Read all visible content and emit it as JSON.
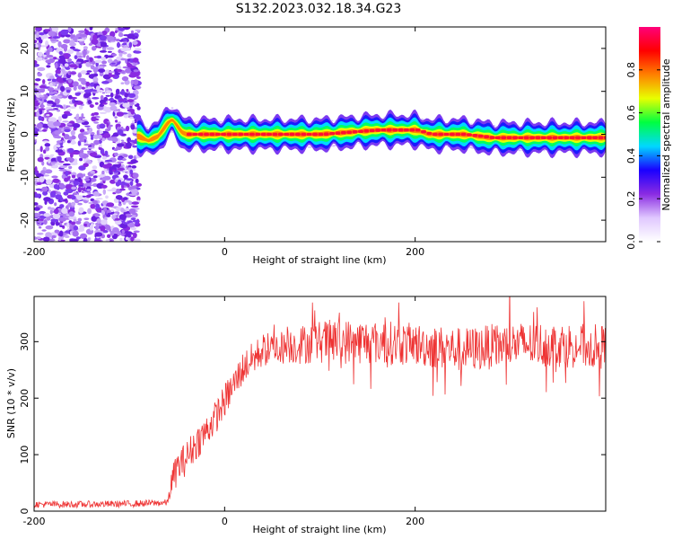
{
  "title": "S132.2023.032.18.34.G23",
  "chart_data": [
    {
      "type": "heatmap",
      "xlabel": "Height of straight line (km)",
      "ylabel": "Frequency (Hz)",
      "xlim": [
        -200,
        400
      ],
      "ylim": [
        -25,
        25
      ],
      "x_ticks": [
        -200,
        0,
        200
      ],
      "y_ticks": [
        20,
        10,
        0,
        -10,
        -20
      ],
      "colorbar": {
        "label": "Normalized spectral amplitude",
        "range": [
          0,
          1
        ],
        "ticks": [
          0.0,
          0.2,
          0.4,
          0.6,
          0.8
        ],
        "colors": [
          "#ffffff",
          "#e0c8ff",
          "#8a2be2",
          "#1a00ff",
          "#00d8ff",
          "#00ff40",
          "#e8ff00",
          "#ff8000",
          "#ff0000",
          "#ff007a"
        ]
      },
      "noise_region_x": [
        -200,
        -90
      ],
      "ridge": {
        "x": [
          -90,
          -80,
          -70,
          -60,
          -55,
          -50,
          -45,
          -40,
          -30,
          0,
          50,
          100,
          130,
          160,
          200,
          215,
          250,
          280,
          320,
          360,
          400
        ],
        "freq": [
          -0.5,
          -1.5,
          -0.5,
          2.5,
          3.5,
          2.0,
          0.5,
          0.0,
          0.0,
          0.0,
          0.0,
          0.0,
          0.5,
          1.0,
          1.0,
          0.0,
          0.0,
          -0.8,
          -0.8,
          -0.8,
          -0.8
        ]
      }
    },
    {
      "type": "line",
      "xlabel": "Height of straight line (km)",
      "ylabel": "SNR (10 * v/v)",
      "xlim": [
        -200,
        400
      ],
      "ylim": [
        0,
        380
      ],
      "x_ticks": [
        -200,
        0,
        200
      ],
      "y_ticks": [
        0,
        100,
        200,
        300
      ],
      "series": [
        {
          "color": "#ee3333",
          "x": [
            -200,
            -150,
            -100,
            -60,
            -55,
            -50,
            -40,
            -30,
            -20,
            -10,
            0,
            10,
            20,
            30,
            40,
            60,
            80,
            100,
            120,
            150,
            200,
            250,
            300,
            350,
            400
          ],
          "y": [
            12,
            12,
            13,
            15,
            55,
            75,
            95,
            120,
            140,
            165,
            195,
            225,
            255,
            270,
            285,
            290,
            295,
            300,
            300,
            300,
            295,
            285,
            295,
            295,
            290
          ],
          "noise": [
            6,
            6,
            6,
            6,
            25,
            30,
            30,
            30,
            30,
            30,
            30,
            30,
            30,
            30,
            30,
            30,
            35,
            38,
            40,
            40,
            38,
            40,
            40,
            40,
            40
          ]
        }
      ]
    }
  ]
}
